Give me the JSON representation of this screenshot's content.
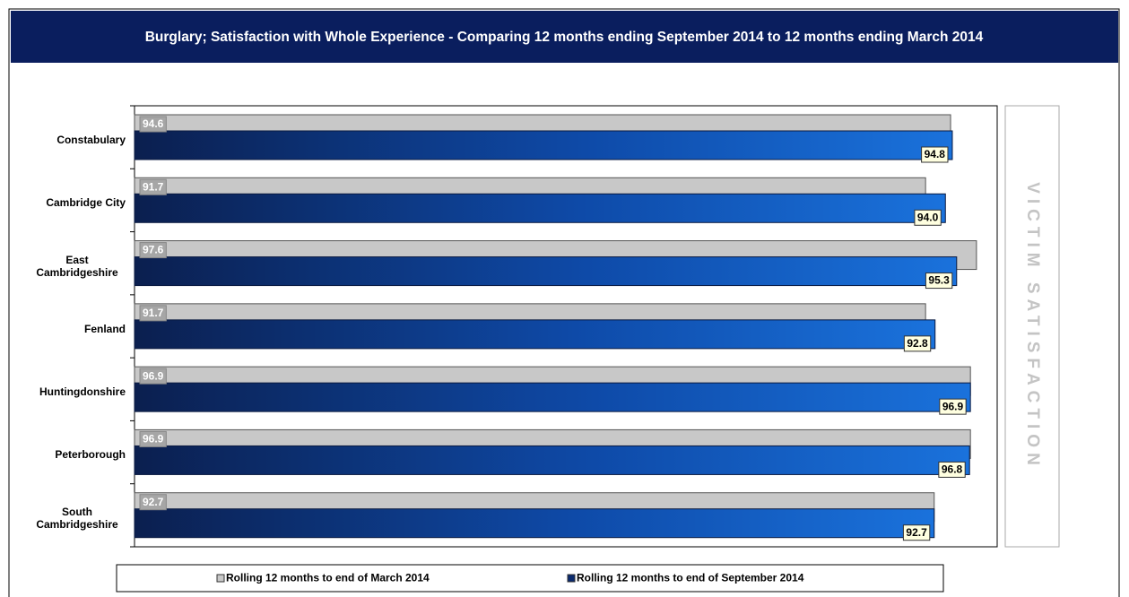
{
  "chart_data": {
    "type": "hbar",
    "title": "Burglary; Satisfaction with Whole Experience - Comparing 12 months ending September 2014 to 12 months ending March 2014",
    "categories": [
      "Constabulary",
      "Cambridge City",
      "East Cambridgeshire",
      "Fenland",
      "Huntingdonshire",
      "Peterborough",
      "South Cambridgeshire"
    ],
    "series": [
      {
        "name": "Rolling 12 months to end of March 2014",
        "color": "#c8c8c8",
        "values": [
          94.6,
          91.7,
          97.6,
          91.7,
          96.9,
          96.9,
          92.7
        ]
      },
      {
        "name": "Rolling 12 months to end of September 2014",
        "color": "#0a2a6e",
        "values": [
          94.8,
          94.0,
          95.3,
          92.8,
          96.9,
          96.8,
          92.7
        ],
        "value_labels": [
          "94.8",
          "94.0",
          "95.3",
          "92.8",
          "96.9",
          "96.8",
          "92.7"
        ]
      }
    ],
    "xlim": [
      0,
      100
    ],
    "side_title": "VICTIM SATISFACTION"
  }
}
